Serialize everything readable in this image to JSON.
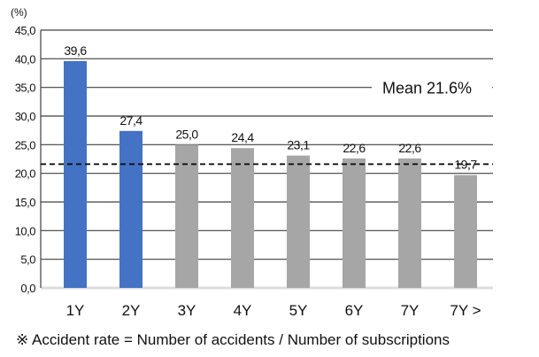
{
  "chart_data": {
    "type": "bar",
    "unit_label": "(%)",
    "categories": [
      "1Y",
      "2Y",
      "3Y",
      "4Y",
      "5Y",
      "6Y",
      "7Y",
      "7Y >"
    ],
    "values": [
      39.6,
      27.4,
      25.0,
      24.4,
      23.1,
      22.6,
      22.6,
      19.7
    ],
    "value_labels": [
      "39,6",
      "27,4",
      "25,0",
      "24,4",
      "23,1",
      "22,6",
      "22,6",
      "19,7"
    ],
    "highlight_count": 2,
    "colors": {
      "highlight": "#4472c4",
      "normal": "#a6a6a6",
      "grid": "#404040",
      "mean_line": "#111111"
    },
    "ylim": [
      0,
      45
    ],
    "yticks": [
      0,
      5,
      10,
      15,
      20,
      25,
      30,
      35,
      40,
      45
    ],
    "ytick_labels": [
      "0,0",
      "5,0",
      "10,0",
      "15,0",
      "20,0",
      "25,0",
      "30,0",
      "35,0",
      "40,0",
      "45,0"
    ],
    "mean": {
      "value": 21.6,
      "label": "Mean 21.6%",
      "style": "dashed"
    },
    "grid": true
  },
  "footnote": "※ Accident rate = Number of accidents / Number of subscriptions"
}
